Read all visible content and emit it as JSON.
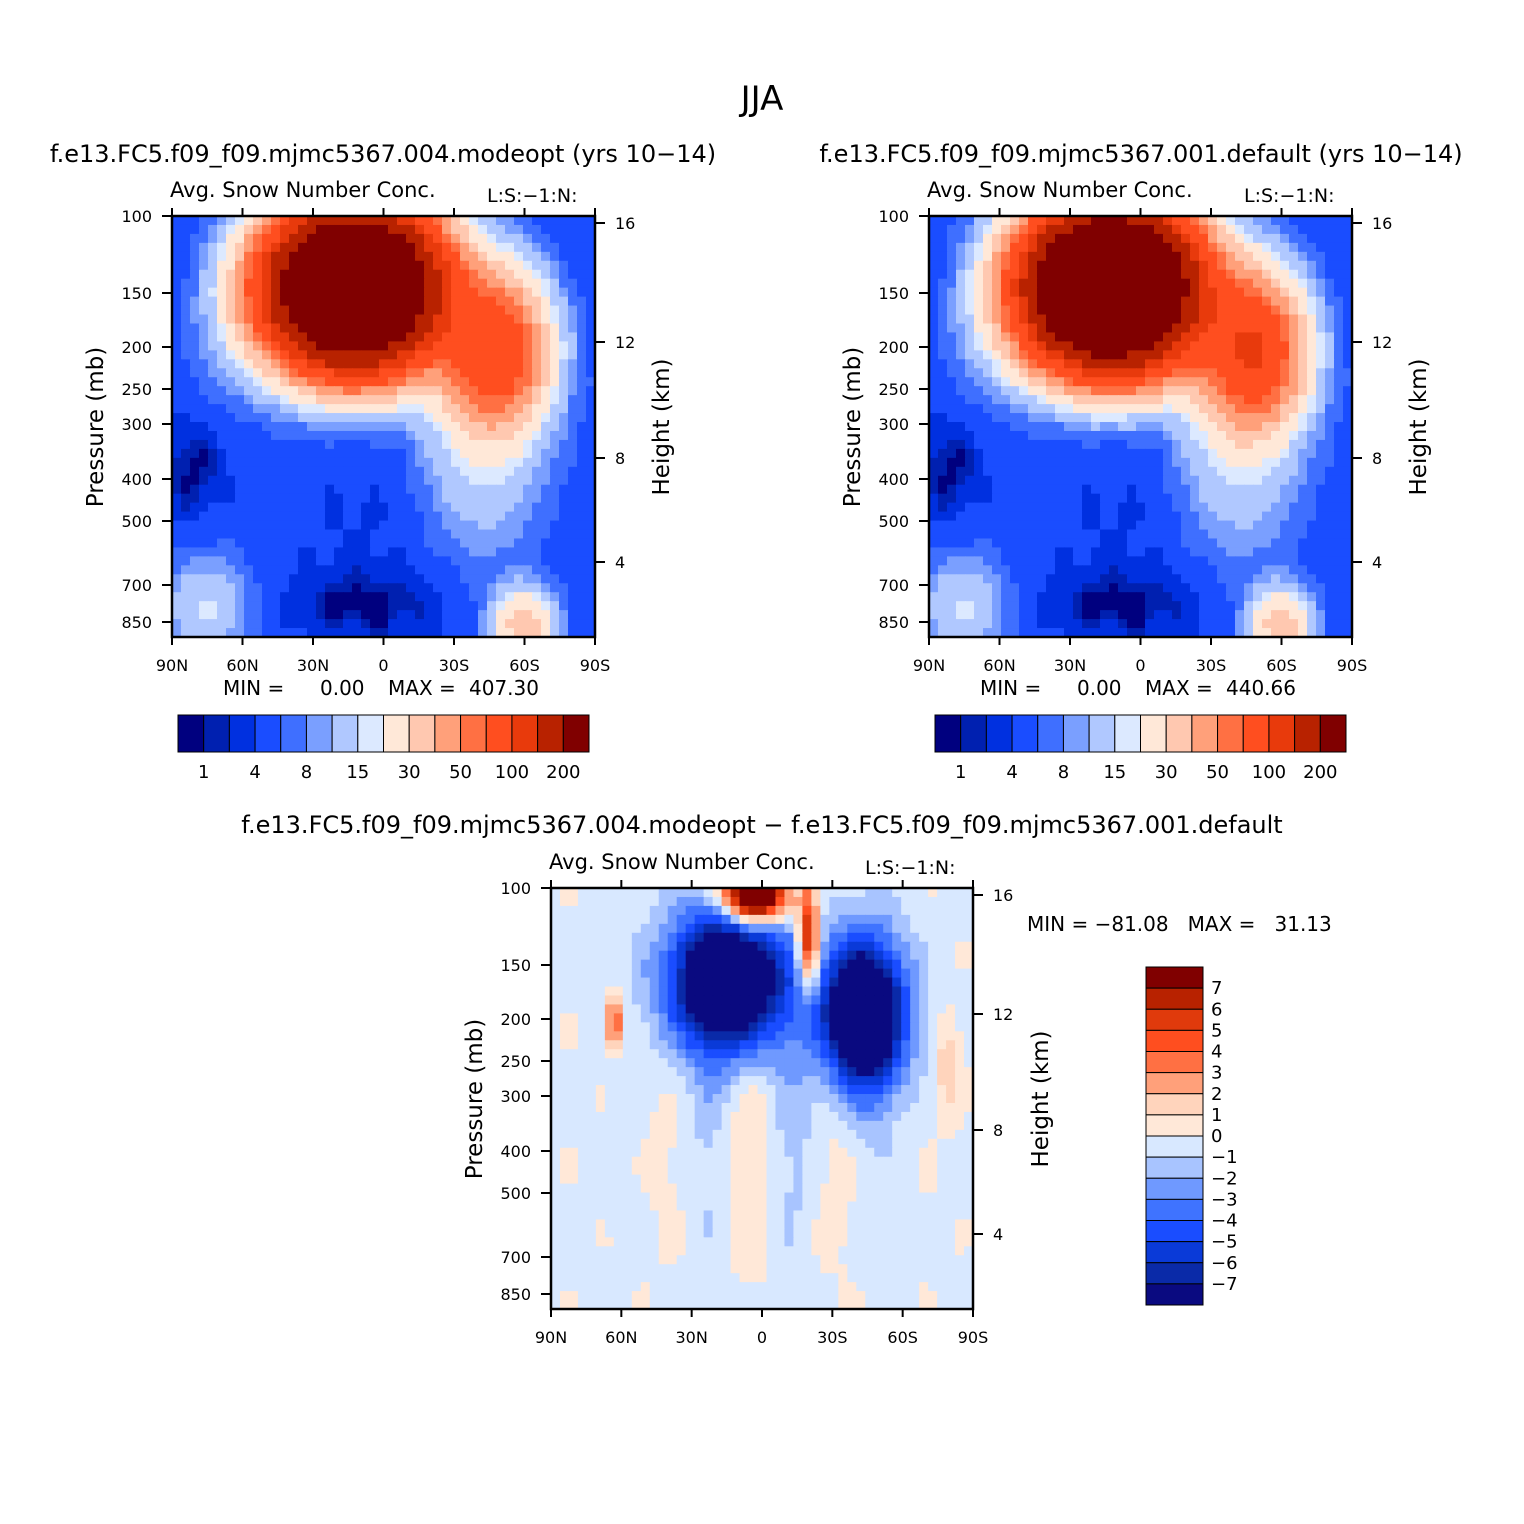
{
  "figure_title": "JJA",
  "colors": {
    "abs_scale": [
      "#00007f",
      "#0020b0",
      "#0030e0",
      "#1a4dff",
      "#3f6fff",
      "#7a9fff",
      "#b0c8ff",
      "#dce9ff",
      "#ffe8d8",
      "#ffc8b0",
      "#ffa07a",
      "#ff7043",
      "#ff4e1f",
      "#e83a0c",
      "#b82200",
      "#800000"
    ],
    "diff_scale": [
      "#0a0a80",
      "#0a2aa8",
      "#0a3ad8",
      "#1a4dff",
      "#3f73ff",
      "#6f99ff",
      "#a8c4ff",
      "#d8e8ff",
      "#ffe8d8",
      "#ffd4bc",
      "#ffa07a",
      "#ff7043",
      "#ff4e1f",
      "#e03a0c",
      "#b82200",
      "#800000"
    ]
  },
  "chart_data": [
    {
      "type": "heatmap",
      "title": "f.e13.FC5.f09_f09.mjmc5367.004.modeopt (yrs 10−14)",
      "subtitle": "Avg. Snow Number Conc.",
      "note": "L:S:−1:N:",
      "xlabel": "",
      "ylabel": "Pressure (mb)",
      "ylabel_right": "Height (km)",
      "x_ticks": [
        "90N",
        "60N",
        "30N",
        "0",
        "30S",
        "60S",
        "90S"
      ],
      "y_ticks": [
        "100",
        "150",
        "200",
        "250",
        "300",
        "400",
        "500",
        "700",
        "850"
      ],
      "y_right_ticks": [
        "16",
        "12",
        "8",
        "4"
      ],
      "stats_min_label": "MIN =",
      "stats_min": "0.00",
      "stats_max_label": "MAX =",
      "stats_max": "407.30",
      "colorbar_labels": [
        "1",
        "4",
        "8",
        "15",
        "30",
        "50",
        "100",
        "200"
      ],
      "field_min": 0.0,
      "field_max": 407.3
    },
    {
      "type": "heatmap",
      "title": "f.e13.FC5.f09_f09.mjmc5367.001.default (yrs 10−14)",
      "subtitle": "Avg. Snow Number Conc.",
      "note": "L:S:−1:N:",
      "xlabel": "",
      "ylabel": "Pressure (mb)",
      "ylabel_right": "Height (km)",
      "x_ticks": [
        "90N",
        "60N",
        "30N",
        "0",
        "30S",
        "60S",
        "90S"
      ],
      "y_ticks": [
        "100",
        "150",
        "200",
        "250",
        "300",
        "400",
        "500",
        "700",
        "850"
      ],
      "y_right_ticks": [
        "16",
        "12",
        "8",
        "4"
      ],
      "stats_min_label": "MIN =",
      "stats_min": "0.00",
      "stats_max_label": "MAX =",
      "stats_max": "440.66",
      "colorbar_labels": [
        "1",
        "4",
        "8",
        "15",
        "30",
        "50",
        "100",
        "200"
      ],
      "field_min": 0.0,
      "field_max": 440.66
    },
    {
      "type": "heatmap",
      "title": "f.e13.FC5.f09_f09.mjmc5367.004.modeopt − f.e13.FC5.f09_f09.mjmc5367.001.default",
      "subtitle": "Avg. Snow Number Conc.",
      "note": "L:S:−1:N:",
      "xlabel": "",
      "ylabel": "Pressure (mb)",
      "ylabel_right": "Height (km)",
      "x_ticks": [
        "90N",
        "60N",
        "30N",
        "0",
        "30S",
        "60S",
        "90S"
      ],
      "y_ticks": [
        "100",
        "150",
        "200",
        "250",
        "300",
        "400",
        "500",
        "700",
        "850"
      ],
      "y_right_ticks": [
        "16",
        "12",
        "8",
        "4"
      ],
      "stats_text": "MIN = −81.08   MAX =   31.13",
      "colorbar_labels": [
        "7",
        "6",
        "5",
        "4",
        "3",
        "2",
        "1",
        "0",
        "−1",
        "−2",
        "−3",
        "−4",
        "−5",
        "−6",
        "−7"
      ],
      "field_min": -81.08,
      "field_max": 31.13
    }
  ]
}
